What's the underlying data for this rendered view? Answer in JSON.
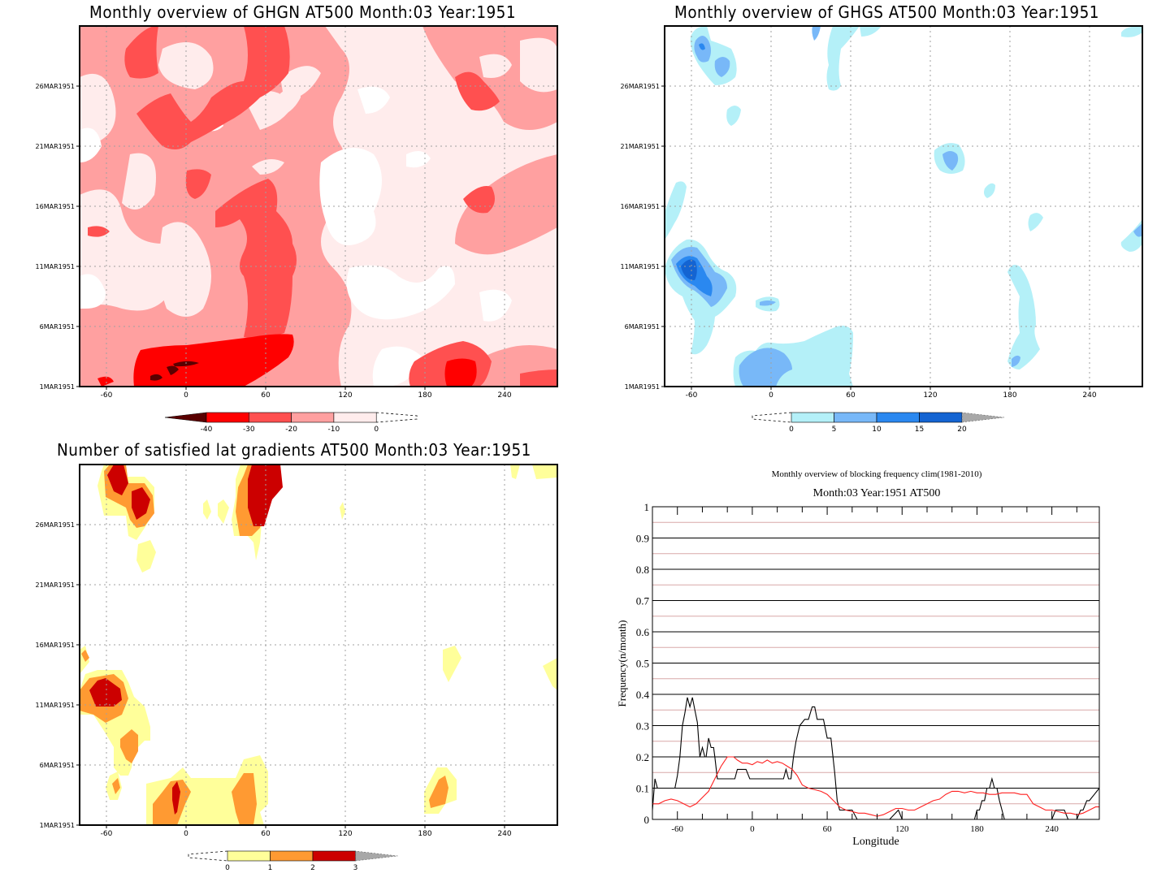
{
  "panels": [
    {
      "id": "ghgn",
      "title": "Monthly overview of GHGN AT500 Month:03 Year:1951",
      "type": "hovmoller-filled-contour",
      "xticks": [
        "-60",
        "0",
        "60",
        "120",
        "180",
        "240"
      ],
      "yticks": [
        "1MAR1951",
        "6MAR1951",
        "11MAR1951",
        "16MAR1951",
        "21MAR1951",
        "26MAR1951"
      ],
      "colorbar": {
        "labels": [
          "-40",
          "-30",
          "-20",
          "-10",
          "0"
        ],
        "colors": [
          "#5a0000",
          "#ff0000",
          "#ff5050",
          "#ffa0a0",
          "#ffecec"
        ],
        "extend_low_color": "#5a0000",
        "extend_high": "dashed-open"
      }
    },
    {
      "id": "ghgs",
      "title": "Monthly overview of GHGS AT500 Month:03 Year:1951",
      "type": "hovmoller-filled-contour",
      "xticks": [
        "-60",
        "0",
        "60",
        "120",
        "180",
        "240"
      ],
      "yticks": [
        "1MAR1951",
        "6MAR1951",
        "11MAR1951",
        "16MAR1951",
        "21MAR1951",
        "26MAR1951"
      ],
      "colorbar": {
        "labels": [
          "0",
          "5",
          "10",
          "15",
          "20"
        ],
        "colors": [
          "#b4f0f8",
          "#78b8f8",
          "#2a88f0",
          "#1464d2"
        ],
        "extend_high_color": "#a8a8a8",
        "extend_low": "dashed-open"
      }
    },
    {
      "id": "gradients",
      "title": "Number of satisfied lat gradients AT500 Month:03 Year:1951",
      "type": "hovmoller-filled-contour",
      "xticks": [
        "-60",
        "0",
        "60",
        "120",
        "180",
        "240"
      ],
      "yticks": [
        "1MAR1951",
        "6MAR1951",
        "11MAR1951",
        "16MAR1951",
        "21MAR1951",
        "26MAR1951"
      ],
      "colorbar": {
        "labels": [
          "0",
          "1",
          "2",
          "3"
        ],
        "colors": [
          "#ffff9a",
          "#ff9a32",
          "#cc0000"
        ],
        "extend_high_color": "#a8a8a8",
        "extend_low": "dashed-open"
      }
    }
  ],
  "chart_data": {
    "type": "line",
    "title": "Monthly overview of blocking frequency clim(1981-2010)",
    "subtitle": "Month:03 Year:1951  AT500",
    "xlabel": "Longitude",
    "ylabel": "Frequency(n/month)",
    "xlim": [
      -80,
      278
    ],
    "ylim": [
      0,
      1
    ],
    "xticks": [
      "-60",
      "0",
      "60",
      "120",
      "180",
      "240"
    ],
    "yticks": [
      "0",
      "0.1",
      "0.2",
      "0.3",
      "0.4",
      "0.5",
      "0.6",
      "0.7",
      "0.8",
      "0.9",
      "1"
    ],
    "grid": true,
    "series": [
      {
        "name": "Month:03 Year:1951",
        "color": "#000000",
        "x": [
          -80,
          -78,
          -76,
          -74,
          -70,
          -66,
          -62,
          -60,
          -58,
          -56,
          -54,
          -52,
          -50,
          -48,
          -46,
          -44,
          -42,
          -40,
          -38,
          -37,
          -35,
          -33,
          -31,
          -30,
          -28,
          -26,
          -24,
          -22,
          -20,
          -14,
          -12,
          -10,
          -5,
          -2,
          0,
          5,
          10,
          20,
          25,
          27,
          29,
          31,
          33,
          35,
          38,
          42,
          45,
          48,
          50,
          52,
          54,
          57,
          60,
          63,
          66,
          68,
          70,
          73,
          76,
          78,
          80,
          84,
          88,
          90,
          100,
          110,
          117,
          120,
          123,
          140,
          160,
          178,
          180,
          182,
          184,
          186,
          188,
          190,
          192,
          194,
          196,
          198,
          200,
          202,
          206,
          210,
          230,
          240,
          243,
          245,
          250,
          253,
          260,
          263,
          265,
          268,
          270,
          274,
          278
        ],
        "y": [
          0.03,
          0.13,
          0.1,
          0.1,
          0.1,
          0.1,
          0.1,
          0.14,
          0.2,
          0.3,
          0.34,
          0.39,
          0.36,
          0.39,
          0.35,
          0.31,
          0.2,
          0.23,
          0.2,
          0.2,
          0.26,
          0.23,
          0.23,
          0.2,
          0.13,
          0.13,
          0.13,
          0.13,
          0.13,
          0.13,
          0.16,
          0.16,
          0.16,
          0.13,
          0.13,
          0.13,
          0.13,
          0.13,
          0.13,
          0.16,
          0.13,
          0.13,
          0.2,
          0.25,
          0.3,
          0.32,
          0.32,
          0.36,
          0.36,
          0.32,
          0.32,
          0.32,
          0.26,
          0.26,
          0.15,
          0.06,
          0.03,
          0.03,
          0.03,
          0.03,
          0.03,
          0.0,
          0.0,
          0.0,
          0.0,
          0.0,
          0.03,
          0.0,
          0.0,
          0.0,
          0.0,
          0.0,
          0.03,
          0.03,
          0.06,
          0.06,
          0.1,
          0.1,
          0.13,
          0.1,
          0.1,
          0.06,
          0.03,
          0.0,
          0.0,
          0.0,
          0.0,
          0.0,
          0.03,
          0.03,
          0.03,
          0.0,
          0.0,
          0.03,
          0.03,
          0.06,
          0.06,
          0.08,
          0.1
        ]
      },
      {
        "name": "clim(1981-2010)",
        "color": "#ff2020",
        "x": [
          -80,
          -75,
          -70,
          -65,
          -60,
          -55,
          -50,
          -45,
          -40,
          -35,
          -30,
          -25,
          -20,
          -15,
          -12,
          -8,
          -4,
          0,
          4,
          8,
          12,
          16,
          20,
          24,
          28,
          32,
          36,
          40,
          45,
          50,
          55,
          60,
          65,
          70,
          75,
          80,
          85,
          90,
          95,
          100,
          105,
          110,
          115,
          120,
          125,
          130,
          135,
          140,
          145,
          150,
          155,
          160,
          165,
          170,
          175,
          180,
          185,
          190,
          195,
          200,
          205,
          210,
          215,
          220,
          225,
          230,
          235,
          240,
          245,
          250,
          255,
          260,
          265,
          270,
          275,
          278
        ],
        "y": [
          0.05,
          0.05,
          0.06,
          0.065,
          0.06,
          0.05,
          0.04,
          0.05,
          0.07,
          0.09,
          0.13,
          0.17,
          0.2,
          0.2,
          0.19,
          0.18,
          0.18,
          0.175,
          0.185,
          0.18,
          0.19,
          0.18,
          0.185,
          0.18,
          0.17,
          0.16,
          0.14,
          0.11,
          0.1,
          0.095,
          0.09,
          0.08,
          0.06,
          0.04,
          0.03,
          0.025,
          0.02,
          0.02,
          0.015,
          0.01,
          0.015,
          0.025,
          0.035,
          0.035,
          0.03,
          0.03,
          0.04,
          0.05,
          0.06,
          0.065,
          0.08,
          0.09,
          0.09,
          0.085,
          0.09,
          0.085,
          0.085,
          0.08,
          0.08,
          0.085,
          0.085,
          0.085,
          0.08,
          0.08,
          0.05,
          0.04,
          0.03,
          0.03,
          0.025,
          0.02,
          0.02,
          0.015,
          0.02,
          0.03,
          0.04,
          0.04
        ]
      }
    ]
  }
}
